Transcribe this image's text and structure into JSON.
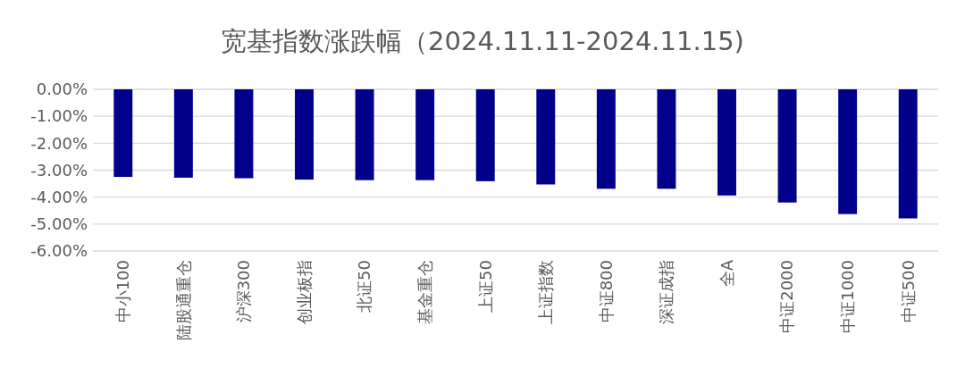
{
  "chart_data": {
    "type": "bar",
    "title": "宽基指数涨跌幅（2024.11.11-2024.11.15)",
    "categories": [
      "中小100",
      "陆股通重仓",
      "沪深300",
      "创业板指",
      "北证50",
      "基金重仓",
      "上证50",
      "上证指数",
      "中证800",
      "深证成指",
      "全A",
      "中证2000",
      "中证1000",
      "中证500"
    ],
    "values": [
      -3.25,
      -3.28,
      -3.3,
      -3.35,
      -3.37,
      -3.37,
      -3.41,
      -3.53,
      -3.69,
      -3.69,
      -3.94,
      -4.2,
      -4.63,
      -4.79
    ],
    "color": "#00008b",
    "ylim": [
      -6,
      0
    ],
    "yticks": [
      {
        "value": 0,
        "label": "0.00%"
      },
      {
        "value": -1,
        "label": "-1.00%"
      },
      {
        "value": -2,
        "label": "-2.00%"
      },
      {
        "value": -3,
        "label": "-3.00%"
      },
      {
        "value": -4,
        "label": "-4.00%"
      },
      {
        "value": -5,
        "label": "-5.00%"
      },
      {
        "value": -6,
        "label": "-6.00%"
      }
    ],
    "grid": true
  }
}
